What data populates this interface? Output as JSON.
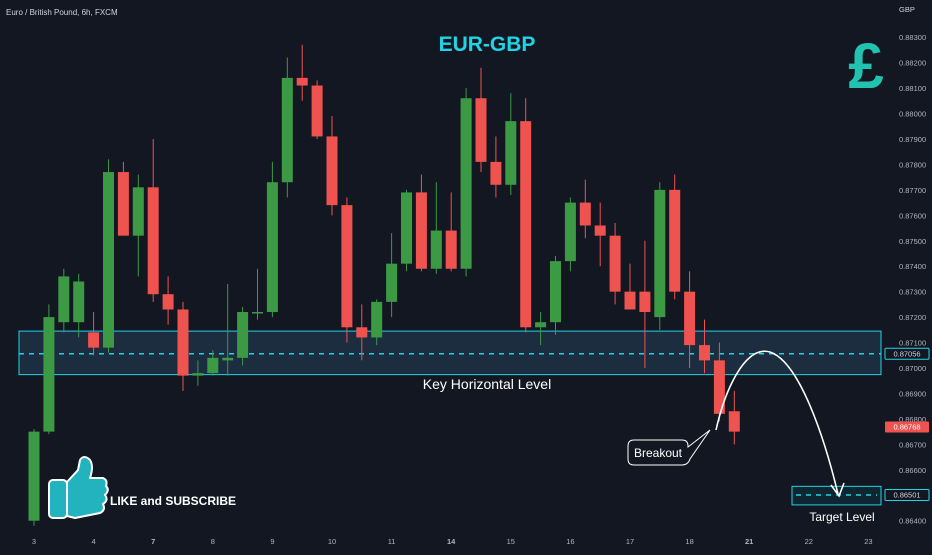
{
  "header": {
    "symbol_label": "Euro / British Pound, 6h, FXCM"
  },
  "currency_glyph": "£",
  "annotations": {
    "title": "EUR-GBP",
    "key_level": "Key Horizontal Level",
    "breakout": "Breakout",
    "target": "Target Level",
    "cta": "LIKE and SUBSCRIBE"
  },
  "colors": {
    "background": "#131722",
    "up": "#26a69a",
    "up_body": "#3c9a45",
    "down": "#ef5350",
    "accent_cyan": "#22d3e6",
    "zone_fill": "#1b2d3f"
  },
  "chart_data": {
    "type": "candlestick",
    "title": "EUR-GBP",
    "ylabel": "GBP",
    "ylim": [
      0.86387,
      0.8834
    ],
    "y_ticks": [
      "0.88300",
      "0.88200",
      "0.88100",
      "0.88000",
      "0.87900",
      "0.87800",
      "0.87700",
      "0.87600",
      "0.87500",
      "0.87400",
      "0.87300",
      "0.87200",
      "0.87100",
      "0.87000",
      "0.86900",
      "0.86800",
      "0.86700",
      "0.86600",
      "0.86500",
      "0.86400"
    ],
    "x_ticks": [
      {
        "label": "3",
        "i": 0,
        "bold": false
      },
      {
        "label": "4",
        "i": 4,
        "bold": false
      },
      {
        "label": "7",
        "i": 8,
        "bold": true
      },
      {
        "label": "8",
        "i": 12,
        "bold": false
      },
      {
        "label": "9",
        "i": 16,
        "bold": false
      },
      {
        "label": "10",
        "i": 20,
        "bold": false
      },
      {
        "label": "11",
        "i": 24,
        "bold": false
      },
      {
        "label": "14",
        "i": 28,
        "bold": true
      },
      {
        "label": "15",
        "i": 32,
        "bold": false
      },
      {
        "label": "16",
        "i": 36,
        "bold": false
      },
      {
        "label": "17",
        "i": 40,
        "bold": false
      },
      {
        "label": "18",
        "i": 44,
        "bold": false
      },
      {
        "label": "21",
        "i": 48,
        "bold": true
      },
      {
        "label": "22",
        "i": 52,
        "bold": false
      },
      {
        "label": "23",
        "i": 56,
        "bold": false
      }
    ],
    "candles": [
      {
        "o": 0.864,
        "h": 0.8676,
        "l": 0.8638,
        "c": 0.8675
      },
      {
        "o": 0.8675,
        "h": 0.8725,
        "l": 0.8674,
        "c": 0.872
      },
      {
        "o": 0.8718,
        "h": 0.8739,
        "l": 0.8714,
        "c": 0.8736
      },
      {
        "o": 0.8718,
        "h": 0.8737,
        "l": 0.8712,
        "c": 0.8734
      },
      {
        "o": 0.8714,
        "h": 0.8722,
        "l": 0.8705,
        "c": 0.8708
      },
      {
        "o": 0.8708,
        "h": 0.8782,
        "l": 0.8706,
        "c": 0.8777
      },
      {
        "o": 0.8777,
        "h": 0.8781,
        "l": 0.8753,
        "c": 0.8752
      },
      {
        "o": 0.8752,
        "h": 0.8776,
        "l": 0.8736,
        "c": 0.8771
      },
      {
        "o": 0.8771,
        "h": 0.879,
        "l": 0.8726,
        "c": 0.8729
      },
      {
        "o": 0.8729,
        "h": 0.8736,
        "l": 0.8717,
        "c": 0.8723
      },
      {
        "o": 0.8723,
        "h": 0.8726,
        "l": 0.8691,
        "c": 0.8697
      },
      {
        "o": 0.8697,
        "h": 0.8703,
        "l": 0.8693,
        "c": 0.8698
      },
      {
        "o": 0.8698,
        "h": 0.8707,
        "l": 0.8697,
        "c": 0.8704
      },
      {
        "o": 0.8703,
        "h": 0.8733,
        "l": 0.8697,
        "c": 0.8704
      },
      {
        "o": 0.8704,
        "h": 0.8724,
        "l": 0.8701,
        "c": 0.8722
      },
      {
        "o": 0.8722,
        "h": 0.8739,
        "l": 0.8719,
        "c": 0.8722
      },
      {
        "o": 0.8722,
        "h": 0.8781,
        "l": 0.872,
        "c": 0.8773
      },
      {
        "o": 0.8773,
        "h": 0.8822,
        "l": 0.8767,
        "c": 0.8814
      },
      {
        "o": 0.8814,
        "h": 0.8827,
        "l": 0.8805,
        "c": 0.8811
      },
      {
        "o": 0.8811,
        "h": 0.8813,
        "l": 0.879,
        "c": 0.8791
      },
      {
        "o": 0.8791,
        "h": 0.8799,
        "l": 0.876,
        "c": 0.8764
      },
      {
        "o": 0.8764,
        "h": 0.8767,
        "l": 0.871,
        "c": 0.8716
      },
      {
        "o": 0.8716,
        "h": 0.8725,
        "l": 0.8703,
        "c": 0.8712
      },
      {
        "o": 0.8712,
        "h": 0.8727,
        "l": 0.8709,
        "c": 0.8726
      },
      {
        "o": 0.8726,
        "h": 0.8753,
        "l": 0.872,
        "c": 0.8741
      },
      {
        "o": 0.8741,
        "h": 0.877,
        "l": 0.8738,
        "c": 0.8769
      },
      {
        "o": 0.8769,
        "h": 0.8776,
        "l": 0.8738,
        "c": 0.8739
      },
      {
        "o": 0.8739,
        "h": 0.8773,
        "l": 0.8737,
        "c": 0.8754
      },
      {
        "o": 0.8754,
        "h": 0.8769,
        "l": 0.8738,
        "c": 0.8739
      },
      {
        "o": 0.8739,
        "h": 0.881,
        "l": 0.8736,
        "c": 0.8806
      },
      {
        "o": 0.8806,
        "h": 0.8818,
        "l": 0.8777,
        "c": 0.8781
      },
      {
        "o": 0.8781,
        "h": 0.8791,
        "l": 0.8767,
        "c": 0.8772
      },
      {
        "o": 0.8772,
        "h": 0.8808,
        "l": 0.8768,
        "c": 0.8797
      },
      {
        "o": 0.8797,
        "h": 0.8806,
        "l": 0.8714,
        "c": 0.8716
      },
      {
        "o": 0.8716,
        "h": 0.8722,
        "l": 0.8709,
        "c": 0.8718
      },
      {
        "o": 0.8718,
        "h": 0.8744,
        "l": 0.8713,
        "c": 0.8742
      },
      {
        "o": 0.8742,
        "h": 0.8767,
        "l": 0.8738,
        "c": 0.8765
      },
      {
        "o": 0.8765,
        "h": 0.8774,
        "l": 0.8751,
        "c": 0.8756
      },
      {
        "o": 0.8756,
        "h": 0.8765,
        "l": 0.874,
        "c": 0.8752
      },
      {
        "o": 0.8752,
        "h": 0.8757,
        "l": 0.8725,
        "c": 0.873
      },
      {
        "o": 0.873,
        "h": 0.8741,
        "l": 0.8724,
        "c": 0.8723
      },
      {
        "o": 0.873,
        "h": 0.875,
        "l": 0.87,
        "c": 0.8722
      },
      {
        "o": 0.872,
        "h": 0.8773,
        "l": 0.8715,
        "c": 0.877
      },
      {
        "o": 0.877,
        "h": 0.8776,
        "l": 0.8727,
        "c": 0.873
      },
      {
        "o": 0.873,
        "h": 0.8738,
        "l": 0.87,
        "c": 0.8709
      },
      {
        "o": 0.8709,
        "h": 0.8719,
        "l": 0.8698,
        "c": 0.8703
      },
      {
        "o": 0.8703,
        "h": 0.871,
        "l": 0.8679,
        "c": 0.8682
      },
      {
        "o": 0.8683,
        "h": 0.8691,
        "l": 0.867,
        "c": 0.8675
      }
    ],
    "current_price": {
      "value": 0.86768,
      "label": "0.86768"
    },
    "key_level": {
      "value": 0.87056,
      "label": "0.87056",
      "zone": [
        0.86974,
        0.87145
      ]
    },
    "target_level": {
      "value": 0.86501,
      "label": "0.86501",
      "zone": [
        0.86462,
        0.86535
      ]
    },
    "projected_path": "bounce to key level then decline to target level"
  }
}
